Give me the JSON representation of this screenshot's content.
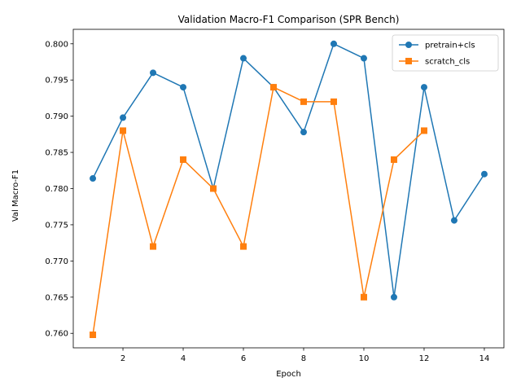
{
  "chart_data": {
    "type": "line",
    "title": "Validation Macro-F1 Comparison (SPR Bench)",
    "xlabel": "Epoch",
    "ylabel": "Val Macro-F1",
    "xlim": [
      0.35,
      14.65
    ],
    "ylim": [
      0.758,
      0.802
    ],
    "xticks": [
      2,
      4,
      6,
      8,
      10,
      12,
      14
    ],
    "yticks": [
      0.76,
      0.765,
      0.77,
      0.775,
      0.78,
      0.785,
      0.79,
      0.795,
      0.8
    ],
    "xtick_labels": [
      "2",
      "4",
      "6",
      "8",
      "10",
      "12",
      "14"
    ],
    "ytick_labels": [
      "0.760",
      "0.765",
      "0.770",
      "0.775",
      "0.780",
      "0.785",
      "0.790",
      "0.795",
      "0.800"
    ],
    "grid": false,
    "legend_position": "top-right",
    "series": [
      {
        "name": "pretrain+cls",
        "color": "#1f77b4",
        "marker": "circle",
        "x": [
          1,
          2,
          3,
          4,
          5,
          6,
          7,
          8,
          9,
          10,
          11,
          12,
          13,
          14
        ],
        "y": [
          0.7814,
          0.7898,
          0.796,
          0.794,
          0.78,
          0.798,
          0.794,
          0.7878,
          0.8,
          0.798,
          0.765,
          0.794,
          0.7756,
          0.782
        ]
      },
      {
        "name": "scratch_cls",
        "color": "#ff7f0e",
        "marker": "square",
        "x": [
          1,
          2,
          3,
          4,
          5,
          6,
          7,
          8,
          9,
          10,
          11,
          12
        ],
        "y": [
          0.7598,
          0.788,
          0.772,
          0.784,
          0.78,
          0.772,
          0.794,
          0.792,
          0.792,
          0.765,
          0.784,
          0.788
        ]
      }
    ]
  }
}
